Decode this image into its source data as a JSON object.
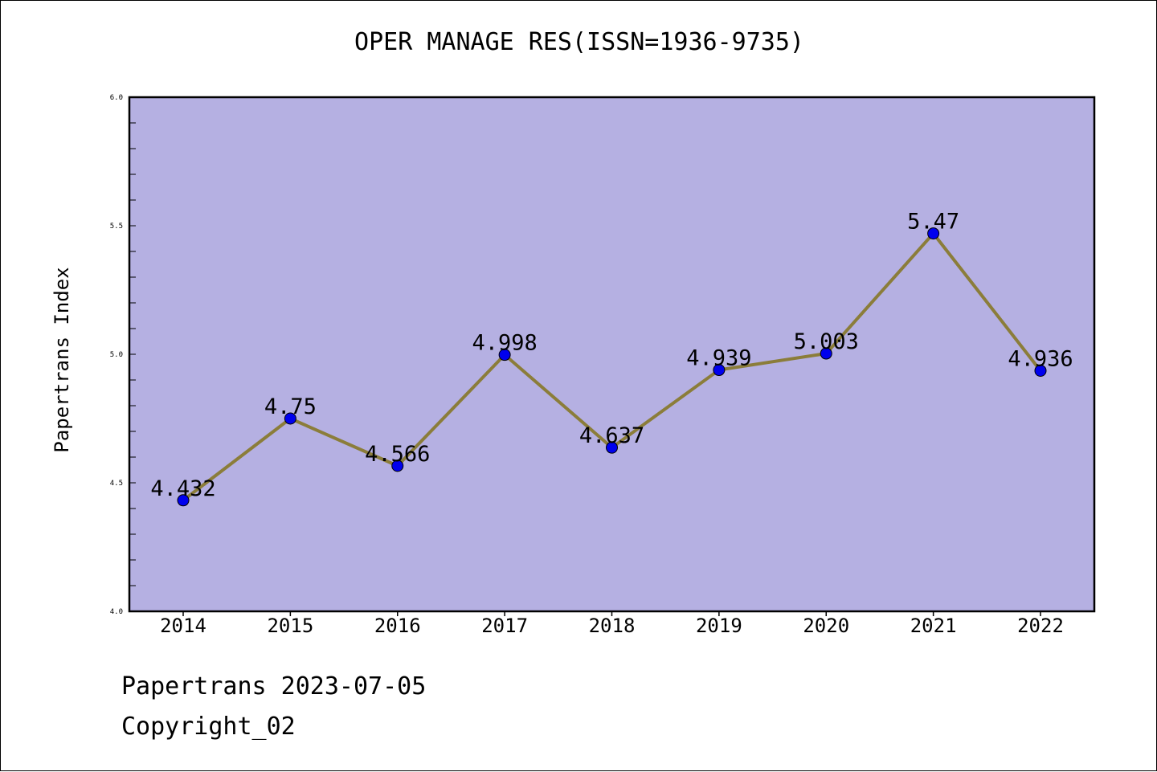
{
  "chart_data": {
    "type": "line",
    "title": "OPER MANAGE RES(ISSN=1936-9735)",
    "xlabel": "",
    "ylabel": "Papertrans Index",
    "categories": [
      "2014",
      "2015",
      "2016",
      "2017",
      "2018",
      "2019",
      "2020",
      "2021",
      "2022"
    ],
    "series": [
      {
        "values": [
          4.432,
          4.75,
          4.566,
          4.998,
          4.637,
          4.939,
          5.003,
          5.47,
          4.936
        ]
      }
    ],
    "data_labels": [
      "4.432",
      "4.75",
      "4.566",
      "4.998",
      "4.637",
      "4.939",
      "5.003",
      "5.47",
      "4.936"
    ],
    "yticks": [
      "4.0",
      "4.5",
      "5.0",
      "5.5",
      "6.0"
    ],
    "ylim": [
      4.0,
      6.0
    ],
    "grid": false,
    "colors": {
      "plot_background": "#b5b0e2",
      "line": "#8b7d3a",
      "marker": "#0000ee"
    }
  },
  "footer": {
    "date": "Papertrans 2023-07-05",
    "copyright": "Copyright_02"
  }
}
